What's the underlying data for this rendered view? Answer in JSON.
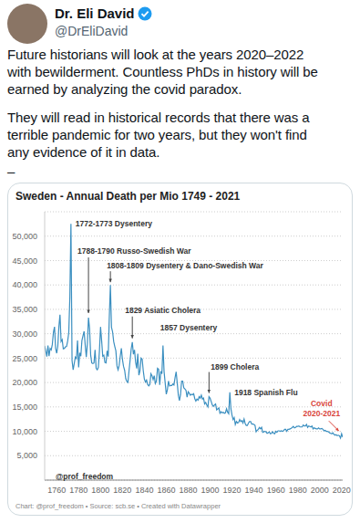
{
  "tweet": {
    "name": "Dr. Eli David",
    "handle": "@DrEliDavid",
    "paragraphs": [
      [
        "Future historians will look at the years 2020–2022",
        "with bewilderment. Countless PhDs in history will be",
        "earned by analyzing the covid paradox."
      ],
      [
        "They will read in historical records that there was a",
        "terrible pandemic for two years, but they won't find",
        "any evidence of it in data."
      ],
      [
        "–"
      ]
    ]
  },
  "chart_data": {
    "type": "line",
    "title": "Sweden - Annual Death per Mio 1749 - 2021",
    "color": "#3b8fc0",
    "grid": true,
    "xlim": [
      1749,
      2021
    ],
    "xticks": [
      1760,
      1780,
      1800,
      1820,
      1840,
      1860,
      1880,
      1900,
      1920,
      1940,
      1960,
      1980,
      2000,
      2020
    ],
    "ylim": [
      0,
      55000
    ],
    "yticks": [
      {
        "value": 5000,
        "label": "5,000"
      },
      {
        "value": 10000,
        "label": "10,000"
      },
      {
        "value": 15000,
        "label": "15,000"
      },
      {
        "value": 20000,
        "label": "20,000"
      },
      {
        "value": 25000,
        "label": "25,000"
      },
      {
        "value": 30000,
        "label": "30,000"
      },
      {
        "value": 35000,
        "label": "35,000"
      },
      {
        "value": 40000,
        "label": "40,000"
      },
      {
        "value": 45000,
        "label": "45,000"
      },
      {
        "value": 50000,
        "label": "50,000"
      }
    ],
    "x": [
      1749,
      1750,
      1751,
      1752,
      1753,
      1754,
      1755,
      1756,
      1757,
      1758,
      1759,
      1760,
      1761,
      1762,
      1763,
      1764,
      1765,
      1766,
      1767,
      1768,
      1769,
      1770,
      1771,
      1772,
      1773,
      1774,
      1775,
      1776,
      1777,
      1778,
      1779,
      1780,
      1781,
      1782,
      1783,
      1784,
      1785,
      1786,
      1787,
      1788,
      1789,
      1790,
      1791,
      1792,
      1793,
      1794,
      1795,
      1796,
      1797,
      1798,
      1799,
      1800,
      1801,
      1802,
      1803,
      1804,
      1805,
      1806,
      1807,
      1808,
      1809,
      1810,
      1811,
      1812,
      1813,
      1814,
      1815,
      1816,
      1817,
      1818,
      1819,
      1820,
      1821,
      1822,
      1823,
      1824,
      1825,
      1826,
      1827,
      1828,
      1829,
      1830,
      1831,
      1832,
      1833,
      1834,
      1835,
      1836,
      1837,
      1838,
      1839,
      1840,
      1841,
      1842,
      1843,
      1844,
      1845,
      1846,
      1847,
      1848,
      1849,
      1850,
      1851,
      1852,
      1853,
      1854,
      1855,
      1856,
      1857,
      1858,
      1859,
      1860,
      1861,
      1862,
      1863,
      1864,
      1865,
      1866,
      1867,
      1868,
      1869,
      1870,
      1871,
      1872,
      1873,
      1874,
      1875,
      1876,
      1877,
      1878,
      1879,
      1880,
      1881,
      1882,
      1883,
      1884,
      1885,
      1886,
      1887,
      1888,
      1889,
      1890,
      1891,
      1892,
      1893,
      1894,
      1895,
      1896,
      1897,
      1898,
      1899,
      1900,
      1901,
      1902,
      1903,
      1904,
      1905,
      1906,
      1907,
      1908,
      1909,
      1910,
      1911,
      1912,
      1913,
      1914,
      1915,
      1916,
      1917,
      1918,
      1919,
      1920,
      1921,
      1922,
      1923,
      1924,
      1925,
      1926,
      1927,
      1928,
      1929,
      1930,
      1931,
      1932,
      1933,
      1934,
      1935,
      1936,
      1937,
      1938,
      1939,
      1940,
      1941,
      1942,
      1943,
      1944,
      1945,
      1946,
      1947,
      1948,
      1949,
      1950,
      1951,
      1952,
      1953,
      1954,
      1955,
      1956,
      1957,
      1958,
      1959,
      1960,
      1961,
      1962,
      1963,
      1964,
      1965,
      1966,
      1967,
      1968,
      1969,
      1970,
      1971,
      1972,
      1973,
      1974,
      1975,
      1976,
      1977,
      1978,
      1979,
      1980,
      1981,
      1982,
      1983,
      1984,
      1985,
      1986,
      1987,
      1988,
      1989,
      1990,
      1991,
      1992,
      1993,
      1994,
      1995,
      1996,
      1997,
      1998,
      1999,
      2000,
      2001,
      2002,
      2003,
      2004,
      2005,
      2006,
      2007,
      2008,
      2009,
      2010,
      2011,
      2012,
      2013,
      2014,
      2015,
      2016,
      2017,
      2018,
      2019,
      2020,
      2021
    ],
    "values": [
      27500,
      26500,
      25300,
      27600,
      25400,
      27000,
      26700,
      27800,
      30300,
      31400,
      27000,
      26000,
      27500,
      31500,
      33900,
      28400,
      28800,
      26900,
      27000,
      27300,
      27400,
      28500,
      30200,
      37500,
      52500,
      24500,
      22600,
      23900,
      25200,
      24900,
      28600,
      23100,
      26100,
      25400,
      28600,
      29600,
      30500,
      27700,
      25200,
      28000,
      33300,
      31000,
      25600,
      24000,
      23900,
      24000,
      26700,
      22900,
      22600,
      23100,
      26500,
      31400,
      28600,
      25400,
      25600,
      24100,
      24000,
      26500,
      25300,
      33400,
      40000,
      31300,
      30400,
      28400,
      27400,
      26500,
      23400,
      22600,
      23500,
      25400,
      27000,
      24700,
      23300,
      22500,
      20800,
      20200,
      20000,
      22400,
      24600,
      26900,
      28300,
      25800,
      26700,
      24200,
      22900,
      25900,
      21500,
      22400,
      25000,
      24800,
      22400,
      20700,
      20100,
      20500,
      19600,
      19300,
      19600,
      21800,
      21400,
      20600,
      21400,
      19800,
      20300,
      22900,
      22700,
      19500,
      22300,
      21800,
      27600,
      22200,
      19900,
      17600,
      18500,
      20300,
      19300,
      19400,
      19400,
      19700,
      19500,
      21000,
      22200,
      19900,
      17400,
      16300,
      17500,
      20300,
      20300,
      18900,
      18700,
      18400,
      17000,
      18100,
      17800,
      17400,
      17600,
      17500,
      17700,
      16700,
      16200,
      16600,
      16400,
      17100,
      16800,
      17400,
      16600,
      16800,
      15600,
      15900,
      15400,
      15000,
      17100,
      16800,
      16100,
      15400,
      15100,
      15400,
      15600,
      14400,
      14600,
      14800,
      13700,
      14000,
      13800,
      13900,
      13700,
      13800,
      14600,
      13900,
      13600,
      18000,
      14600,
      13300,
      12400,
      12800,
      11400,
      12000,
      11700,
      11800,
      12400,
      12000,
      12200,
      11700,
      12500,
      11600,
      11200,
      11200,
      11700,
      12000,
      12000,
      11500,
      11500,
      11400,
      11200,
      9900,
      10200,
      10400,
      10800,
      10500,
      10800,
      9800,
      9900,
      10000,
      9900,
      9600,
      9700,
      9900,
      9500,
      9600,
      9900,
      9600,
      9500,
      10000,
      9800,
      10100,
      10100,
      10000,
      10100,
      10000,
      10100,
      10400,
      10400,
      10000,
      10400,
      10400,
      10500,
      10600,
      10800,
      11000,
      10700,
      10800,
      11000,
      11000,
      11100,
      10900,
      10900,
      10900,
      11300,
      11100,
      11100,
      11400,
      10800,
      11100,
      11000,
      10900,
      11100,
      10500,
      10700,
      10600,
      10500,
      10500,
      10700,
      10500,
      10500,
      10600,
      10400,
      10100,
      10200,
      10000,
      10000,
      9900,
      9700,
      9600,
      9500,
      9700,
      9400,
      9200,
      9300,
      9100,
      9200,
      9100,
      8600,
      9500,
      8800
    ],
    "annotations": [
      {
        "text": "1772-1773 Dysentery",
        "x": 1773,
        "y": 52500
      },
      {
        "text": "1788-1790 Russo-Swedish War",
        "x": 1789,
        "y": 33300
      },
      {
        "text": "1808-1809 Dysentery & Dano-Swedish War",
        "x": 1809,
        "y": 40000
      },
      {
        "text": "1829 Asiatic Cholera",
        "x": 1829,
        "y": 28300
      },
      {
        "text": "1857 Dysentery",
        "x": 1857,
        "y": 27600
      },
      {
        "text": "1899 Cholera",
        "x": 1899,
        "y": 17100
      },
      {
        "text": "1918 Spanish Flu",
        "x": 1918,
        "y": 18000
      },
      {
        "text": "Covid\n2020-2021",
        "x": 2020,
        "y": 9500,
        "color": "#d9453b"
      }
    ],
    "watermark": "@prof_freedom",
    "footer": "Chart: @prof_freedom • Source: scb.se • Created with Datawrapper"
  }
}
